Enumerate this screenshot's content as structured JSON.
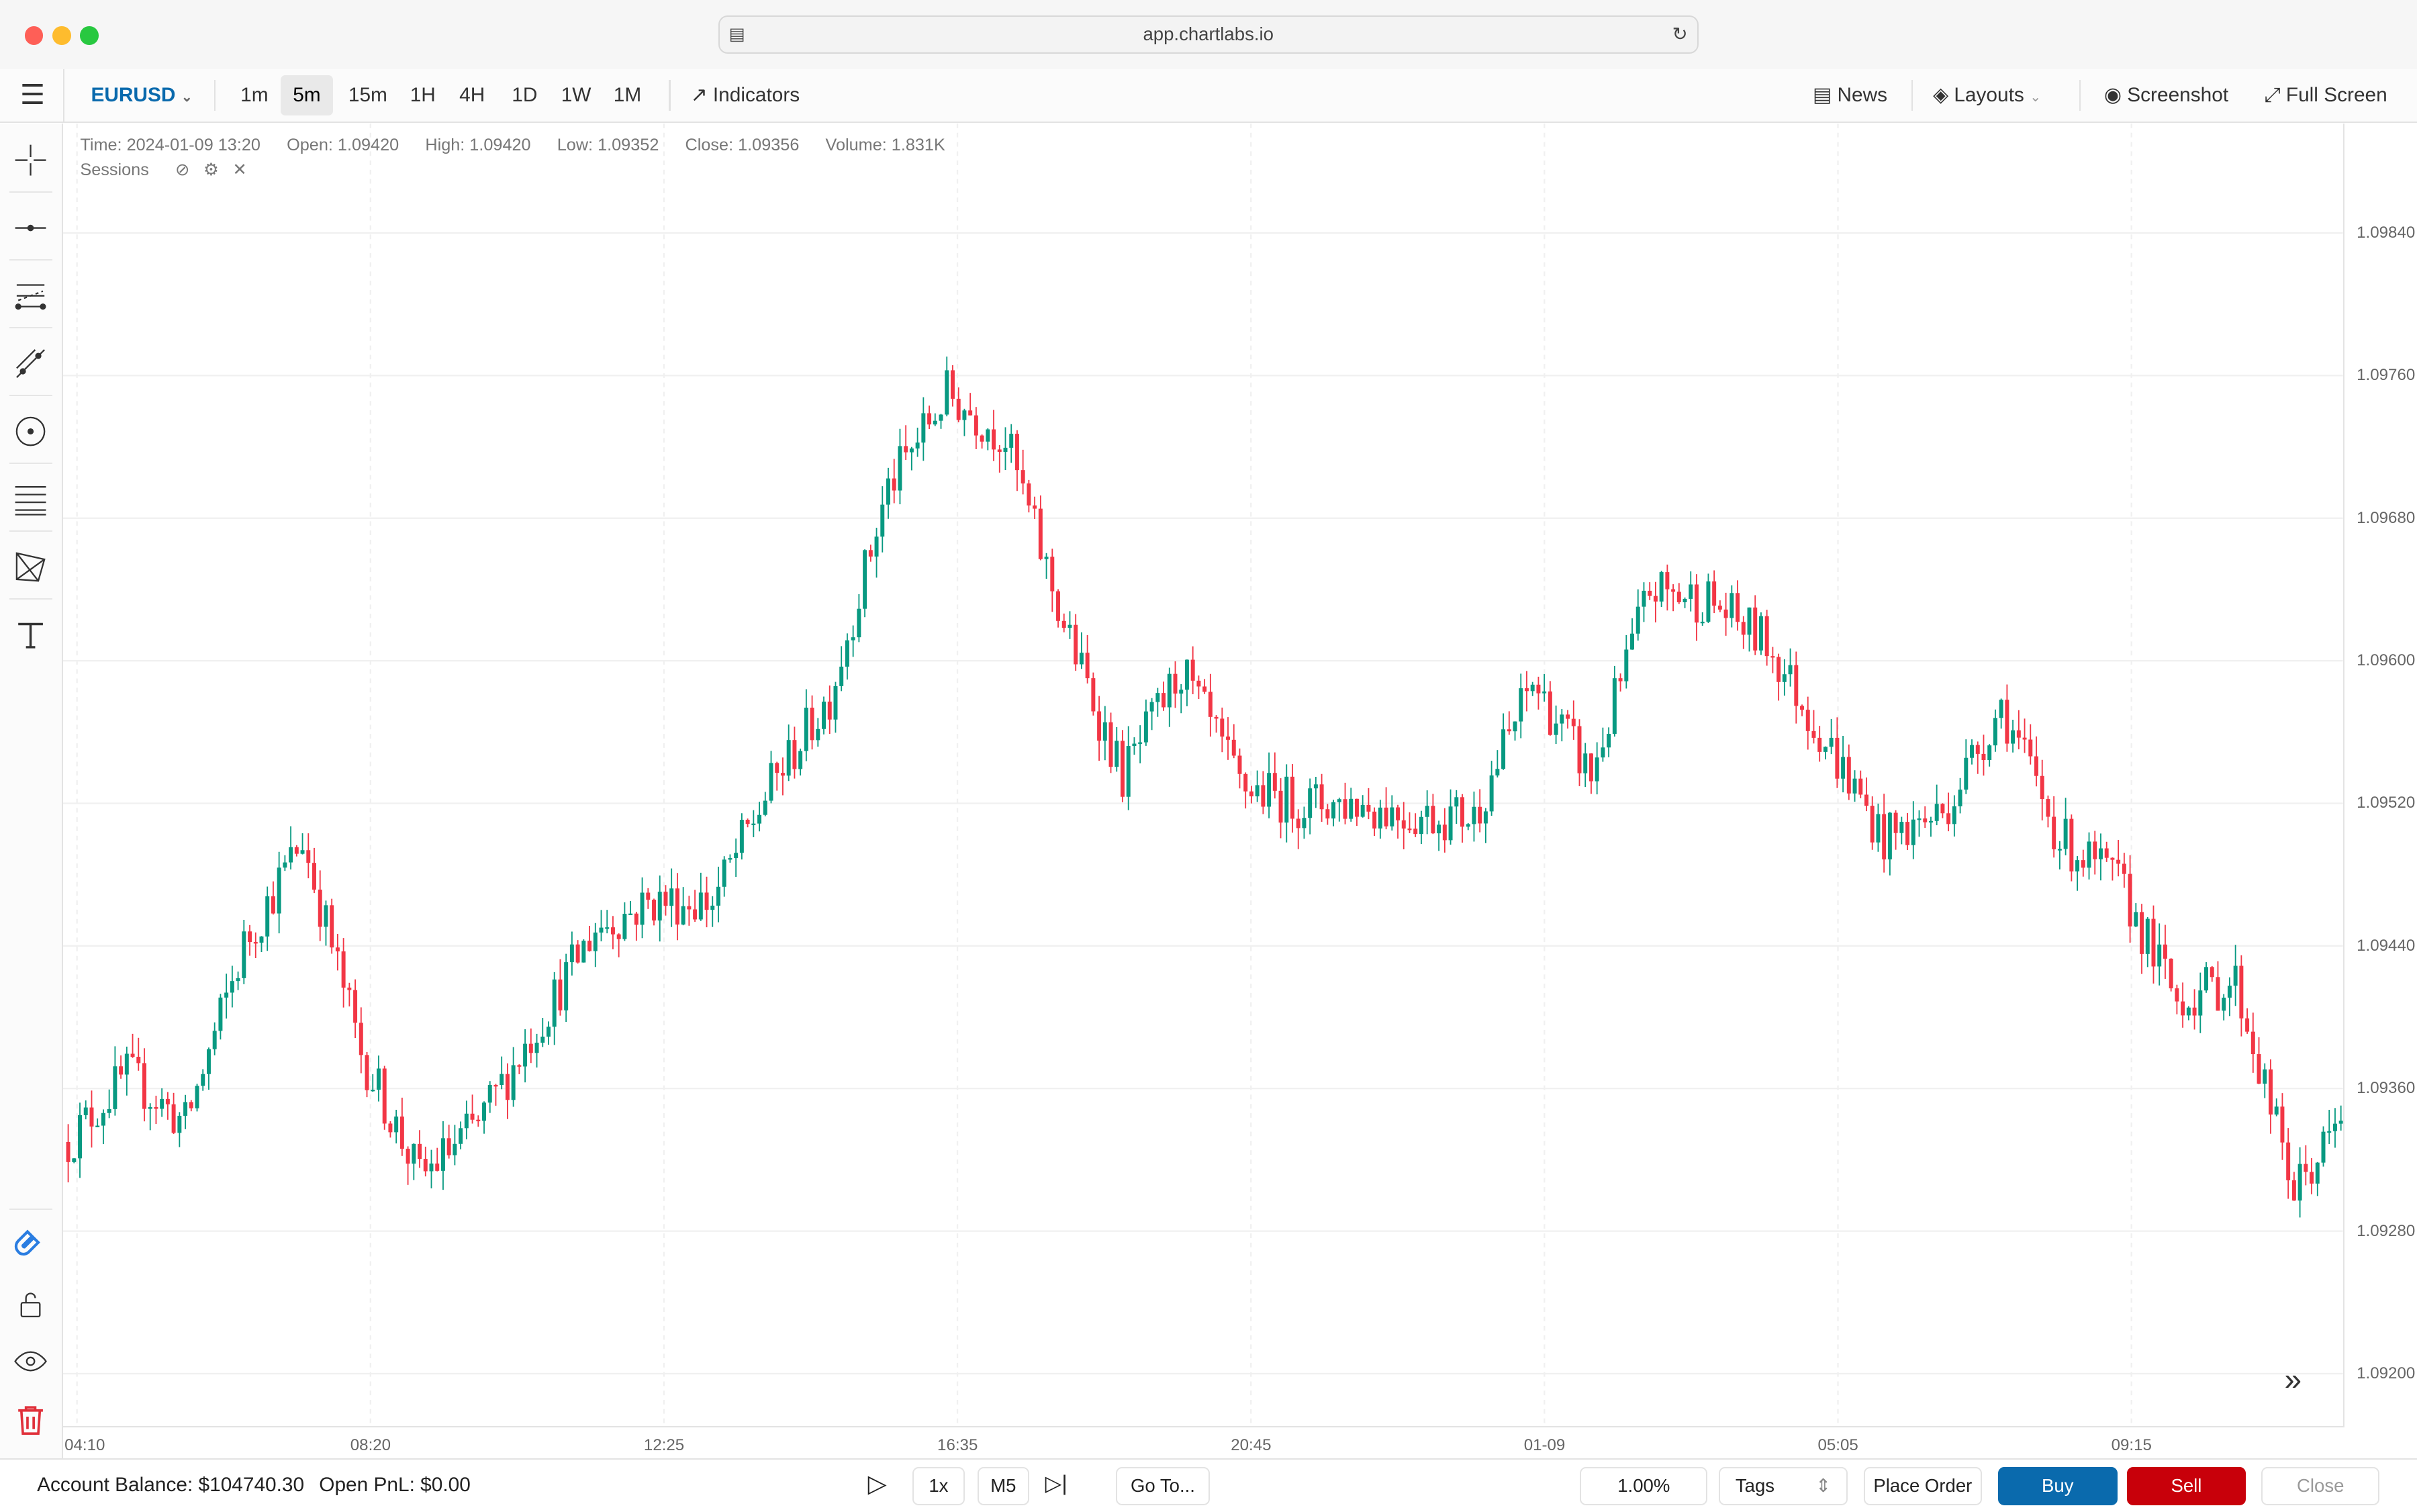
{
  "window": {
    "url": "app.chartlabs.io"
  },
  "toolbar": {
    "symbol": "EURUSD",
    "timeframes": [
      "1m",
      "5m",
      "15m",
      "1H",
      "4H",
      "1D",
      "1W",
      "1M"
    ],
    "active_timeframe": "5m",
    "indicators": "Indicators",
    "news": "News",
    "layouts": "Layouts",
    "screenshot": "Screenshot",
    "fullscreen": "Full Screen"
  },
  "legend": {
    "time": "Time: 2024-01-09 13:20",
    "open": "Open: 1.09420",
    "high": "High: 1.09420",
    "low": "Low: 1.09352",
    "close": "Close: 1.09356",
    "volume": "Volume: 1.831K",
    "sessions": "Sessions"
  },
  "colors": {
    "up": "#089981",
    "down": "#f23645",
    "accent": "#0a6aad",
    "buy": "#0a6aad",
    "sell": "#c8000a"
  },
  "chart_data": {
    "type": "candlestick",
    "symbol": "EURUSD",
    "interval": "5m",
    "price_ticks": [
      "1.09840",
      "1.09760",
      "1.09680",
      "1.09600",
      "1.09520",
      "1.09440",
      "1.09360",
      "1.09280",
      "1.09200"
    ],
    "time_ticks": [
      "04:10",
      "08:20",
      "12:25",
      "16:35",
      "20:45",
      "01-09",
      "05:05",
      "09:15"
    ],
    "approx_close_every_10_bars": [
      1.0933,
      1.09368,
      1.0934,
      1.0944,
      1.095,
      1.0938,
      1.0931,
      1.0934,
      1.09395,
      1.0945,
      1.09465,
      1.09465,
      1.0953,
      1.0958,
      1.09697,
      1.0975,
      1.09725,
      1.0962,
      1.09535,
      1.09595,
      1.0953,
      1.0952,
      1.0952,
      1.09513,
      1.09513,
      1.09588,
      1.09535,
      1.0964,
      1.09634,
      1.0961,
      1.09555,
      1.095,
      1.09515,
      1.09575,
      1.095,
      1.09475,
      1.0941,
      1.0942,
      1.09302,
      1.0935
    ]
  },
  "bottom": {
    "balance": "Account Balance: $104740.30",
    "pnl": "Open PnL: $0.00",
    "speed": "1x",
    "interval": "M5",
    "goto": "Go To...",
    "risk": "1.00%",
    "tags": "Tags",
    "place_order": "Place Order",
    "buy": "Buy",
    "sell": "Sell",
    "close": "Close"
  }
}
